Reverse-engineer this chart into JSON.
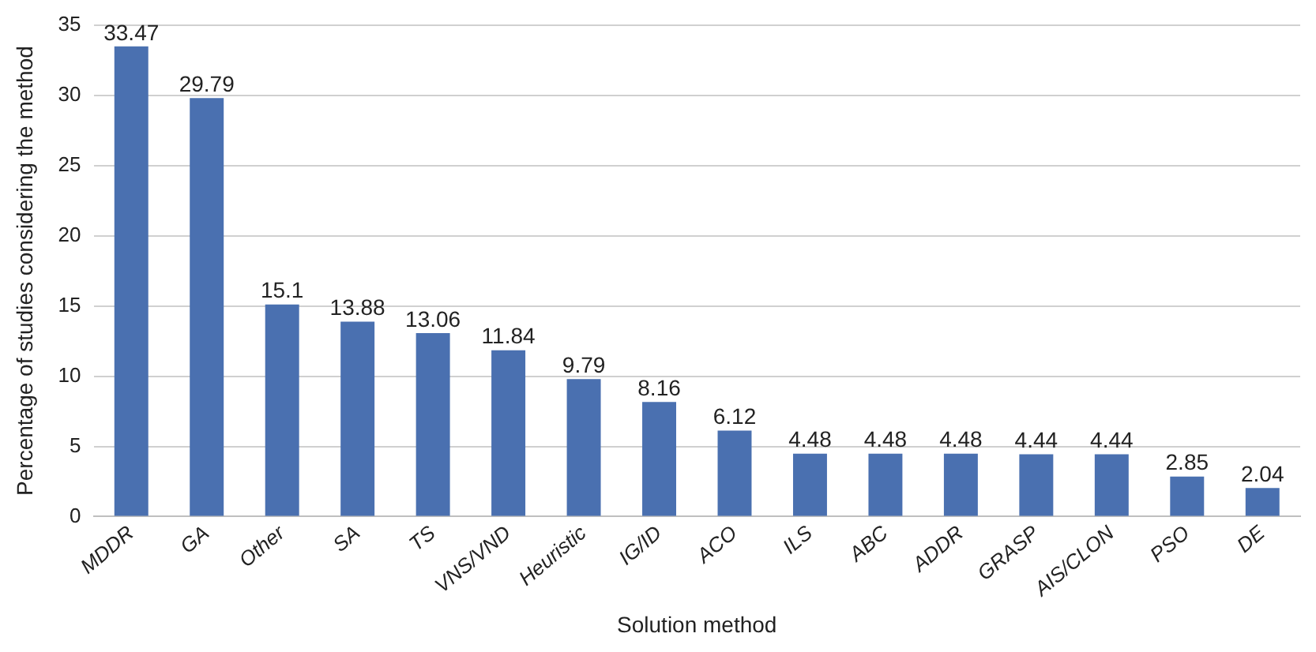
{
  "chart_data": {
    "type": "bar",
    "xlabel": "Solution method",
    "ylabel": "Percentage of studies considering the method",
    "categories": [
      "MDDR",
      "GA",
      "Other",
      "SA",
      "TS",
      "VNS/VND",
      "Heuristic",
      "IG/ID",
      "ACO",
      "ILS",
      "ABC",
      "ADDR",
      "GRASP",
      "AIS/CLON",
      "PSO",
      "DE"
    ],
    "values": [
      33.47,
      29.79,
      15.1,
      13.88,
      13.06,
      11.84,
      9.79,
      8.16,
      6.12,
      4.48,
      4.48,
      4.48,
      4.44,
      4.44,
      2.85,
      2.04
    ],
    "color": "#4a70b0",
    "ylim": [
      0,
      35
    ],
    "yticks": [
      0,
      5,
      10,
      15,
      20,
      25,
      30,
      35
    ],
    "grid": "y",
    "data_labels": true,
    "legend": false
  }
}
